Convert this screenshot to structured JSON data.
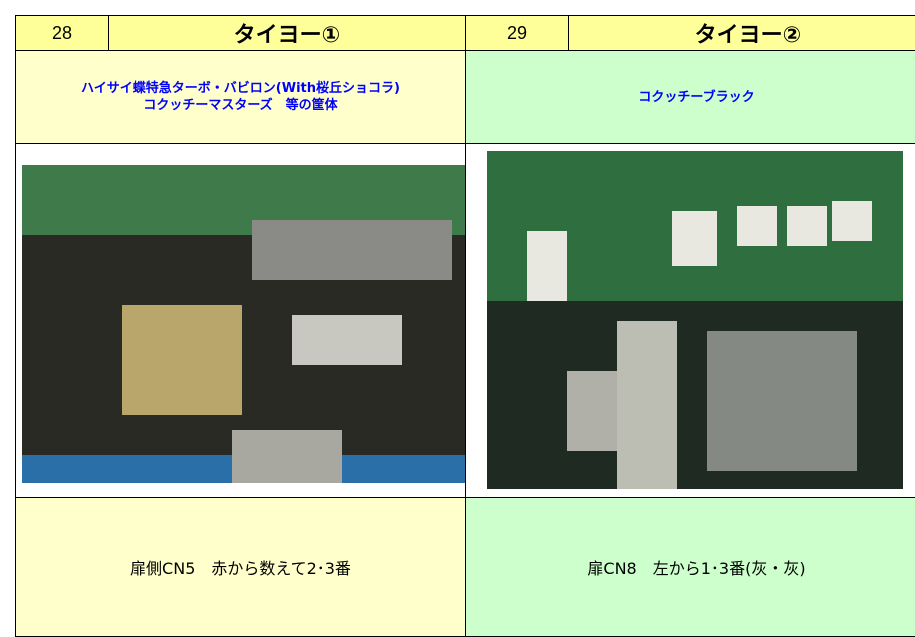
{
  "panels": [
    {
      "number": "28",
      "title": "タイヨー①",
      "description": [
        "ハイサイ蝶特急ターボ・バビロン(With桜丘ショコラ)",
        "コクッチーマスターズ　等の筐体"
      ],
      "caption": "扉側CN5　赤から数えて2･3番"
    },
    {
      "number": "29",
      "title": "タイヨー②",
      "description": [
        "コクッチーブラック"
      ],
      "caption": "扉CN8　左から1･3番(灰・灰)"
    }
  ]
}
